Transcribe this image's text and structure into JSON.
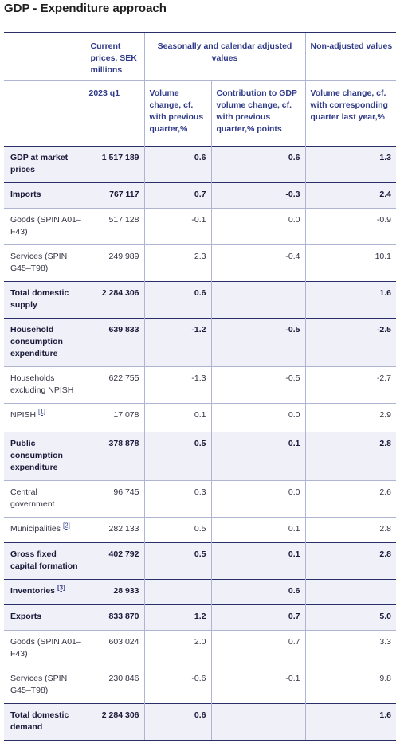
{
  "title": "GDP - Expenditure approach",
  "header": {
    "current_prices": "Current prices, SEK millions",
    "seasonal_group": "Seasonally and calendar adjusted values",
    "nonadj_group": "Non-adjusted values",
    "period": "2023 q1",
    "vol_change_prev": "Volume change, cf. with previous quarter,%",
    "contribution": "Contribution to GDP volume change, cf. with previous quarter,% points",
    "vol_change_year": "Volume change, cf. with corresponding quarter last year,%"
  },
  "rows": [
    {
      "label": "GDP at market prices",
      "note": "",
      "bold": true,
      "h": 46,
      "v": [
        "1 517 189",
        "0.6",
        "0.6",
        "1.3"
      ]
    },
    {
      "label": "Imports",
      "note": "",
      "bold": true,
      "h": 32,
      "v": [
        "767 117",
        "0.7",
        "-0.3",
        "2.4"
      ]
    },
    {
      "label": "Goods (SPIN A01–F43)",
      "note": "",
      "bold": false,
      "h": 46,
      "v": [
        "517 128",
        "-0.1",
        "0.0",
        "-0.9"
      ]
    },
    {
      "label": "Services (SPIN G45–T98)",
      "note": "",
      "bold": false,
      "h": 46,
      "v": [
        "249 989",
        "2.3",
        "-0.4",
        "10.1"
      ]
    },
    {
      "label": "Total domestic supply",
      "note": "",
      "bold": true,
      "h": 46,
      "v": [
        "2 284 306",
        "0.6",
        "",
        "1.6"
      ]
    },
    {
      "label": "Household consumption expenditure",
      "note": "",
      "bold": true,
      "h": 61,
      "v": [
        "639 833",
        "-1.2",
        "-0.5",
        "-2.5"
      ]
    },
    {
      "label": "Households excluding NPISH",
      "note": "",
      "bold": false,
      "h": 46,
      "v": [
        "622 755",
        "-1.3",
        "-0.5",
        "-2.7"
      ]
    },
    {
      "label": "NPISH",
      "note": "[1]",
      "bold": false,
      "h": 36,
      "v": [
        "17 078",
        "0.1",
        "0.0",
        "2.9"
      ]
    },
    {
      "label": "Public consumption expenditure",
      "note": "",
      "bold": true,
      "h": 61,
      "v": [
        "378 878",
        "0.5",
        "0.1",
        "2.8"
      ]
    },
    {
      "label": "Central government",
      "note": "",
      "bold": false,
      "h": 46,
      "v": [
        "96 745",
        "0.3",
        "0.0",
        "2.6"
      ]
    },
    {
      "label": "Municipalities",
      "note": "[2]",
      "bold": false,
      "h": 32,
      "v": [
        "282 133",
        "0.5",
        "0.1",
        "2.8"
      ]
    },
    {
      "label": "Gross fixed capital formation",
      "note": "",
      "bold": true,
      "h": 46,
      "v": [
        "402 792",
        "0.5",
        "0.1",
        "2.8"
      ]
    },
    {
      "label": "Inventories",
      "note": "[3]",
      "bold": true,
      "h": 32,
      "v": [
        "28 933",
        "",
        "0.6",
        ""
      ]
    },
    {
      "label": "Exports",
      "note": "",
      "bold": true,
      "h": 32,
      "v": [
        "833 870",
        "1.2",
        "0.7",
        "5.0"
      ]
    },
    {
      "label": "Goods (SPIN A01–F43)",
      "note": "",
      "bold": false,
      "h": 46,
      "v": [
        "603 024",
        "2.0",
        "0.7",
        "3.3"
      ]
    },
    {
      "label": "Services (SPIN G45–T98)",
      "note": "",
      "bold": false,
      "h": 46,
      "v": [
        "230 846",
        "-0.6",
        "-0.1",
        "9.8"
      ]
    },
    {
      "label": "Total domestic demand",
      "note": "",
      "bold": true,
      "h": 46,
      "v": [
        "2 284 306",
        "0.6",
        "",
        "1.6"
      ]
    }
  ]
}
